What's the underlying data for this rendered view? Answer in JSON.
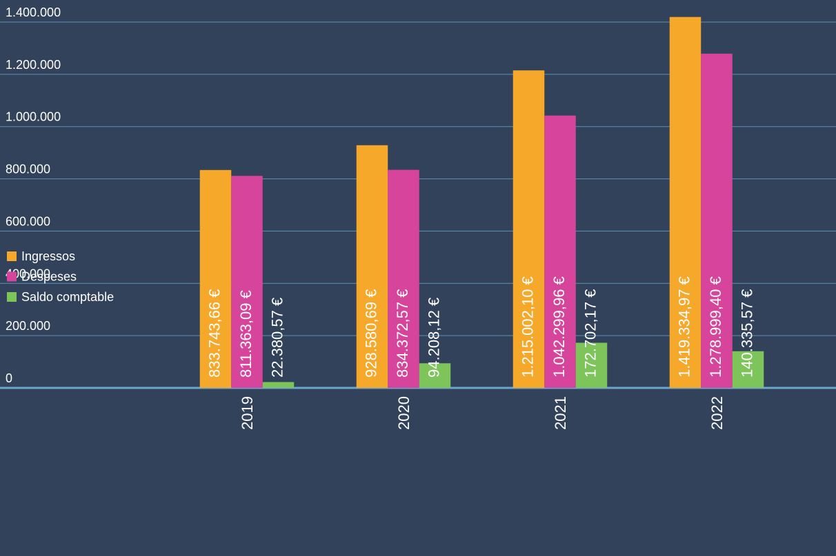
{
  "chart_data": {
    "type": "bar",
    "categories": [
      "2019",
      "2020",
      "2021",
      "2022"
    ],
    "series": [
      {
        "name": "Ingressos",
        "color": "#f6a82b",
        "values": [
          833743.66,
          928580.69,
          1215002.1,
          1419334.97
        ],
        "value_labels": [
          "833.743,66 €",
          "928.580,69 €",
          "1.215.002,10 €",
          "1.419.334,97 €"
        ]
      },
      {
        "name": "Despeses",
        "color": "#d6449b",
        "values": [
          811363.09,
          834372.57,
          1042299.96,
          1278999.4
        ],
        "value_labels": [
          "811.363,09 €",
          "834.372,57 €",
          "1.042.299,96 €",
          "1.278.999,40 €"
        ]
      },
      {
        "name": "Saldo comptable",
        "color": "#7dc45a",
        "values": [
          22380.57,
          94208.12,
          172702.17,
          140335.57
        ],
        "value_labels": [
          "22.380,57 €",
          "94.208,12 €",
          "172.702,17 €",
          "140.335,57 €"
        ]
      }
    ],
    "ylim": [
      0,
      1400000
    ],
    "yticks": [
      0,
      {
        "value": 200000,
        "label": "200.000"
      },
      {
        "value": 400000,
        "label": "400.000"
      },
      {
        "value": 600000,
        "label": "600.000"
      },
      {
        "value": 800000,
        "label": "800.000"
      },
      {
        "value": 1000000,
        "label": "1.000.000"
      },
      {
        "value": 1200000,
        "label": "1.200.000"
      },
      {
        "value": 1400000,
        "label": "1.400.000"
      }
    ],
    "grid": true,
    "legend": "bottom-left"
  }
}
